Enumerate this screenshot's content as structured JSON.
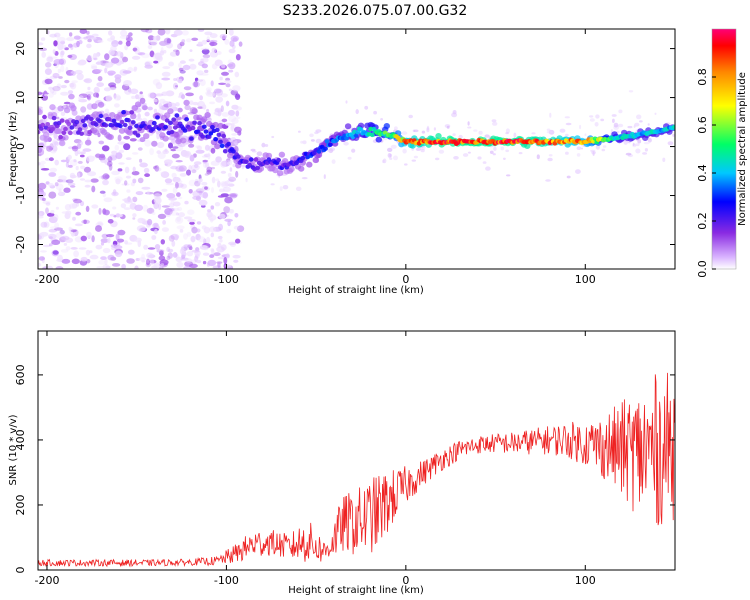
{
  "title": "S233.2026.075.07.00.G32",
  "chart_data": [
    {
      "type": "heatmap",
      "title": "S233.2026.075.07.00.G32",
      "xlabel": "Height of straight line (km)",
      "ylabel": "Frequency (Hz)",
      "xlim": [
        -205,
        150
      ],
      "ylim": [
        -25,
        24
      ],
      "xticks": [
        -200,
        -100,
        0,
        100
      ],
      "yticks": [
        -20,
        -10,
        0,
        10,
        20
      ],
      "colorbar": {
        "label": "Normalized spectral amplitude",
        "range": [
          0,
          1
        ],
        "ticks": [
          0.0,
          0.2,
          0.4,
          0.6,
          0.8
        ],
        "tick_labels": [
          "0.0",
          "0.2",
          "0.4",
          "0.6",
          "0.8"
        ],
        "colors": [
          "#ffffff",
          "#d9b3ff",
          "#8a2be2",
          "#0000ff",
          "#00c8ff",
          "#00ff66",
          "#ffff00",
          "#ff8800",
          "#ff0000",
          "#ff0077"
        ]
      },
      "ridge": {
        "x": [
          -205,
          -160,
          -140,
          -120,
          -105,
          -95,
          -85,
          -75,
          -65,
          -55,
          -45,
          -35,
          -25,
          -15,
          -5,
          0,
          20,
          40,
          60,
          80,
          100,
          120,
          140,
          150
        ],
        "freq": [
          4,
          5,
          4,
          4,
          3,
          -2,
          -4,
          -3,
          -4,
          -2,
          0,
          2,
          3,
          3,
          2,
          1,
          1,
          1,
          1,
          1,
          1,
          2,
          3,
          4
        ],
        "amplitude": [
          0.25,
          0.3,
          0.3,
          0.3,
          0.35,
          0.3,
          0.3,
          0.3,
          0.3,
          0.35,
          0.4,
          0.45,
          0.5,
          0.6,
          0.7,
          0.85,
          0.95,
          0.95,
          0.95,
          0.9,
          0.8,
          0.5,
          0.5,
          0.5
        ]
      },
      "noise_region_x": [
        -205,
        -100
      ]
    },
    {
      "type": "line",
      "title": "",
      "xlabel": "Height of straight line (km)",
      "ylabel": "SNR (10 * v/v)",
      "xlim": [
        -205,
        150
      ],
      "ylim": [
        0,
        735
      ],
      "xticks": [
        -200,
        -100,
        0,
        100
      ],
      "yticks": [
        0,
        200,
        400,
        600
      ],
      "color": "#ee2222",
      "series": [
        {
          "name": "SNR",
          "x": [
            -205,
            -180,
            -160,
            -140,
            -120,
            -105,
            -95,
            -85,
            -75,
            -65,
            -55,
            -45,
            -35,
            -25,
            -15,
            -8,
            0,
            10,
            20,
            30,
            40,
            50,
            60,
            70,
            80,
            90,
            100,
            110,
            120,
            130,
            140,
            150
          ],
          "mean": [
            22,
            22,
            22,
            22,
            24,
            28,
            50,
            80,
            85,
            70,
            90,
            55,
            140,
            150,
            180,
            220,
            260,
            300,
            340,
            370,
            385,
            390,
            390,
            395,
            400,
            400,
            390,
            380,
            370,
            360,
            370,
            380
          ],
          "spread": [
            10,
            10,
            10,
            10,
            10,
            14,
            30,
            45,
            40,
            40,
            70,
            35,
            90,
            110,
            120,
            90,
            60,
            40,
            35,
            30,
            28,
            30,
            35,
            40,
            45,
            55,
            70,
            100,
            150,
            200,
            240,
            230
          ]
        }
      ]
    }
  ]
}
